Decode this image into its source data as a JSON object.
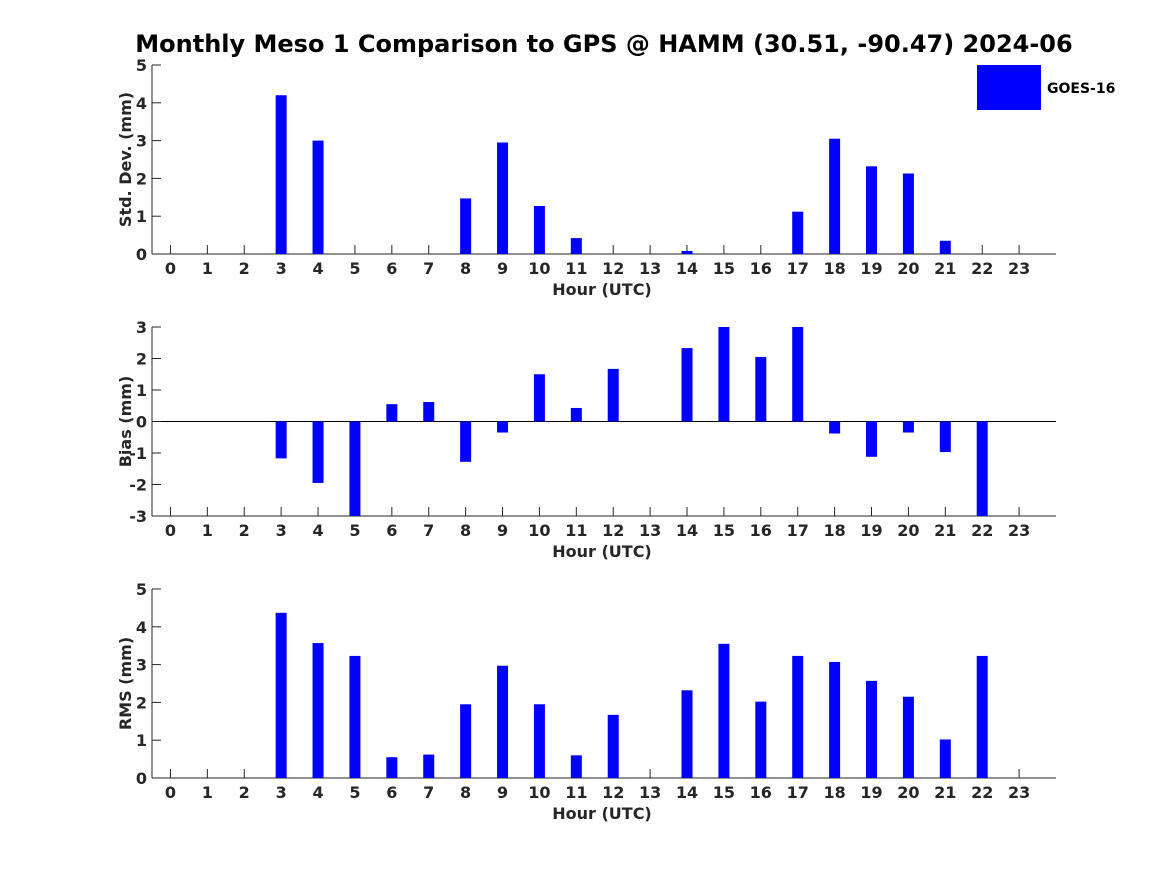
{
  "title": "Monthly Meso 1 Comparison to GPS @ HAMM (30.51, -90.47) 2024-06",
  "legend": {
    "label": "GOES-16",
    "placement": "top-right"
  },
  "colors": {
    "bar": "#0000ff",
    "axis": "#262626",
    "background": "#ffffff"
  },
  "chart_data": [
    {
      "type": "bar",
      "name": "std-dev",
      "xlabel": "Hour (UTC)",
      "ylabel": "Std. Dev. (mm)",
      "ylim": [
        0,
        5
      ],
      "yticks": [
        "0",
        "1",
        "2",
        "3",
        "4",
        "5"
      ],
      "categories": [
        "0",
        "1",
        "2",
        "3",
        "4",
        "5",
        "6",
        "7",
        "8",
        "9",
        "10",
        "11",
        "12",
        "13",
        "14",
        "15",
        "16",
        "17",
        "18",
        "19",
        "20",
        "21",
        "22",
        "23"
      ],
      "series": [
        {
          "name": "GOES-16",
          "values": [
            null,
            null,
            null,
            4.2,
            3.0,
            null,
            null,
            null,
            1.47,
            2.95,
            1.27,
            0.42,
            null,
            null,
            0.08,
            null,
            null,
            1.12,
            3.05,
            2.32,
            2.13,
            0.35,
            null,
            null
          ]
        }
      ],
      "grid": false
    },
    {
      "type": "bar",
      "name": "bias",
      "xlabel": "Hour (UTC)",
      "ylabel": "Bias (mm)",
      "ylim": [
        -3,
        3
      ],
      "yticks": [
        "-3",
        "-2",
        "-1",
        "0",
        "1",
        "2",
        "3"
      ],
      "categories": [
        "0",
        "1",
        "2",
        "3",
        "4",
        "5",
        "6",
        "7",
        "8",
        "9",
        "10",
        "11",
        "12",
        "13",
        "14",
        "15",
        "16",
        "17",
        "18",
        "19",
        "20",
        "21",
        "22",
        "23"
      ],
      "series": [
        {
          "name": "GOES-16",
          "values": [
            null,
            null,
            null,
            -1.17,
            -1.95,
            -3.0,
            0.55,
            0.62,
            -1.28,
            -0.35,
            1.5,
            0.43,
            1.67,
            null,
            2.33,
            3.0,
            2.05,
            3.0,
            -0.38,
            -1.12,
            -0.35,
            -0.97,
            -3.0,
            null
          ]
        }
      ],
      "grid": false
    },
    {
      "type": "bar",
      "name": "rms",
      "xlabel": "Hour (UTC)",
      "ylabel": "RMS (mm)",
      "ylim": [
        0,
        5
      ],
      "yticks": [
        "0",
        "1",
        "2",
        "3",
        "4",
        "5"
      ],
      "categories": [
        "0",
        "1",
        "2",
        "3",
        "4",
        "5",
        "6",
        "7",
        "8",
        "9",
        "10",
        "11",
        "12",
        "13",
        "14",
        "15",
        "16",
        "17",
        "18",
        "19",
        "20",
        "21",
        "22",
        "23"
      ],
      "series": [
        {
          "name": "GOES-16",
          "values": [
            null,
            null,
            null,
            4.37,
            3.57,
            3.23,
            0.55,
            0.62,
            1.95,
            2.97,
            1.95,
            0.6,
            1.67,
            null,
            2.32,
            3.55,
            2.02,
            3.23,
            3.07,
            2.57,
            2.15,
            1.02,
            3.23,
            null
          ]
        }
      ],
      "grid": false
    }
  ]
}
